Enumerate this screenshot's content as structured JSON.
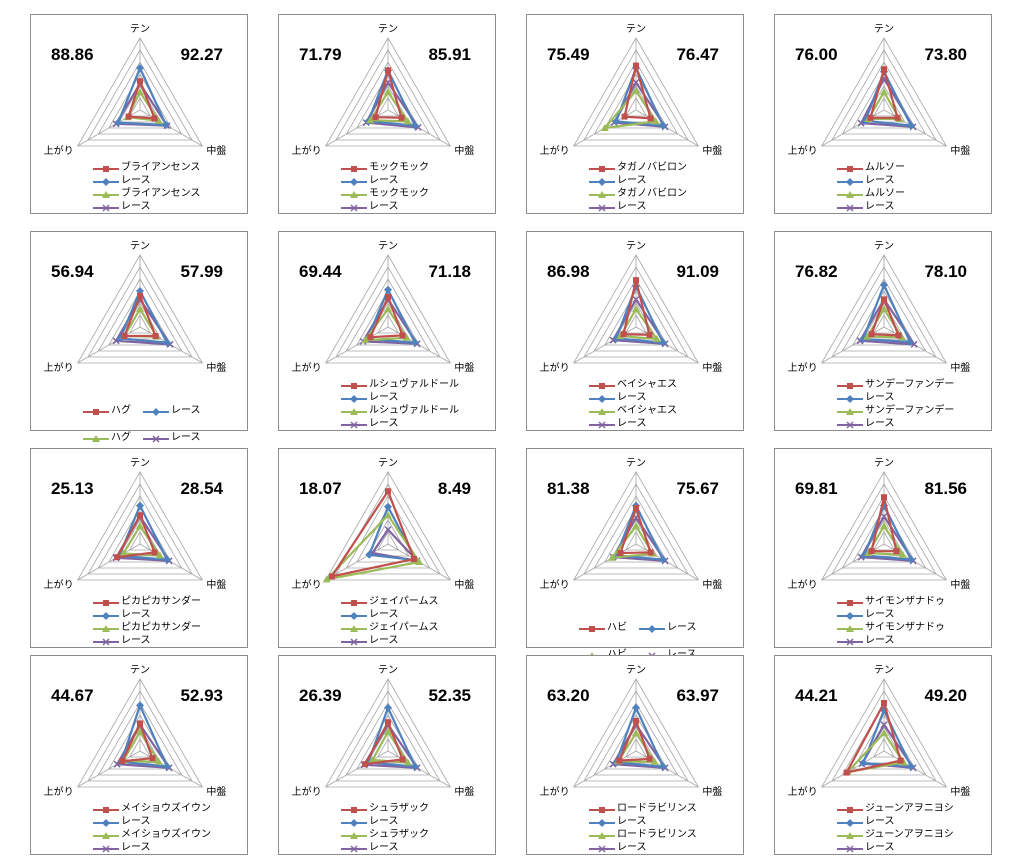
{
  "chart_data": {
    "type": "radar",
    "axes": [
      "テン",
      "中盤",
      "上がり"
    ],
    "series_colors": {
      "horse_early": "#C0504D",
      "race_early": "#4F81BD",
      "horse_late": "#9BBB59",
      "race_late": "#8064A2"
    },
    "grid_levels": 6,
    "rmax": 6,
    "panels": [
      {
        "left_score": "88.86",
        "right_score": "92.27",
        "horse": "ブライアンセンス",
        "race": "レース",
        "legend_layout": "list",
        "series": [
          {
            "name": "ブライアンセンス",
            "color": "#C0504D",
            "marker": "square",
            "values": [
              2.4,
              1.4,
              1.1
            ]
          },
          {
            "name": "レース",
            "color": "#4F81BD",
            "marker": "diamond",
            "values": [
              3.5,
              2.5,
              2.1
            ]
          },
          {
            "name": "ブライアンセンス",
            "color": "#9BBB59",
            "marker": "triangle",
            "values": [
              1.5,
              1.8,
              1.2
            ]
          },
          {
            "name": "レース",
            "color": "#8064A2",
            "marker": "x",
            "values": [
              2.2,
              2.6,
              2.3
            ]
          }
        ]
      },
      {
        "left_score": "71.79",
        "right_score": "85.91",
        "horse": "モックモック",
        "race": "レース",
        "legend_layout": "list",
        "series": [
          {
            "name": "モックモック",
            "color": "#C0504D",
            "marker": "square",
            "values": [
              3.3,
              1.3,
              1.2
            ]
          },
          {
            "name": "レース",
            "color": "#4F81BD",
            "marker": "diamond",
            "values": [
              3.3,
              2.6,
              1.9
            ]
          },
          {
            "name": "モックモック",
            "color": "#9BBB59",
            "marker": "triangle",
            "values": [
              1.5,
              1.9,
              1.7
            ]
          },
          {
            "name": "レース",
            "color": "#8064A2",
            "marker": "x",
            "values": [
              2.3,
              2.9,
              2.1
            ]
          }
        ]
      },
      {
        "left_score": "75.49",
        "right_score": "76.47",
        "horse": "タガノバビロン",
        "race": "レース",
        "legend_layout": "list",
        "series": [
          {
            "name": "タガノバビロン",
            "color": "#C0504D",
            "marker": "square",
            "values": [
              3.7,
              1.4,
              1.1
            ]
          },
          {
            "name": "レース",
            "color": "#4F81BD",
            "marker": "diamond",
            "values": [
              3.5,
              2.6,
              1.9
            ]
          },
          {
            "name": "タガノバビロン",
            "color": "#9BBB59",
            "marker": "triangle",
            "values": [
              1.6,
              1.9,
              3.0
            ]
          },
          {
            "name": "レース",
            "color": "#8064A2",
            "marker": "x",
            "values": [
              2.3,
              2.8,
              2.1
            ]
          }
        ]
      },
      {
        "left_score": "76.00",
        "right_score": "73.80",
        "horse": "ムルソー",
        "race": "レース",
        "legend_layout": "list",
        "series": [
          {
            "name": "ムルソー",
            "color": "#C0504D",
            "marker": "square",
            "values": [
              3.4,
              1.3,
              1.3
            ]
          },
          {
            "name": "レース",
            "color": "#4F81BD",
            "marker": "diamond",
            "values": [
              3.2,
              2.6,
              1.8
            ]
          },
          {
            "name": "ムルソー",
            "color": "#9BBB59",
            "marker": "triangle",
            "values": [
              1.5,
              1.5,
              1.5
            ]
          },
          {
            "name": "レース",
            "color": "#8064A2",
            "marker": "x",
            "values": [
              2.6,
              2.8,
              2.2
            ]
          }
        ]
      },
      {
        "left_score": "56.94",
        "right_score": "57.99",
        "horse": "ハグ",
        "race": "レース",
        "legend_layout": "grid",
        "series": [
          {
            "name": "ハグ",
            "color": "#C0504D",
            "marker": "square",
            "values": [
              2.6,
              1.5,
              1.5
            ]
          },
          {
            "name": "レース",
            "color": "#4F81BD",
            "marker": "diamond",
            "values": [
              3.0,
              2.6,
              1.9
            ]
          },
          {
            "name": "ハグ",
            "color": "#9BBB59",
            "marker": "triangle",
            "values": [
              1.5,
              1.6,
              1.5
            ]
          },
          {
            "name": "レース",
            "color": "#8064A2",
            "marker": "x",
            "values": [
              2.3,
              2.9,
              2.3
            ]
          }
        ]
      },
      {
        "left_score": "69.44",
        "right_score": "71.18",
        "horse": "ルシュヴァルドール",
        "race": "レース",
        "legend_layout": "list",
        "series": [
          {
            "name": "ルシュヴァルドール",
            "color": "#C0504D",
            "marker": "square",
            "values": [
              2.5,
              1.4,
              1.7
            ]
          },
          {
            "name": "レース",
            "color": "#4F81BD",
            "marker": "diamond",
            "values": [
              3.1,
              2.6,
              2.0
            ]
          },
          {
            "name": "ルシュヴァルドール",
            "color": "#9BBB59",
            "marker": "triangle",
            "values": [
              1.5,
              1.8,
              2.2
            ]
          },
          {
            "name": "レース",
            "color": "#8064A2",
            "marker": "x",
            "values": [
              2.3,
              2.8,
              2.4
            ]
          }
        ]
      },
      {
        "left_score": "86.98",
        "right_score": "91.09",
        "horse": "ベイシャエス",
        "race": "レース",
        "legend_layout": "list",
        "series": [
          {
            "name": "ベイシャエス",
            "color": "#C0504D",
            "marker": "square",
            "values": [
              3.9,
              1.3,
              1.2
            ]
          },
          {
            "name": "レース",
            "color": "#4F81BD",
            "marker": "diamond",
            "values": [
              3.4,
              2.6,
              1.9
            ]
          },
          {
            "name": "ベイシャエス",
            "color": "#9BBB59",
            "marker": "triangle",
            "values": [
              1.5,
              2.0,
              1.5
            ]
          },
          {
            "name": "レース",
            "color": "#8064A2",
            "marker": "x",
            "values": [
              2.3,
              2.8,
              2.2
            ]
          }
        ]
      },
      {
        "left_score": "76.82",
        "right_score": "78.10",
        "horse": "サンデーファンデー",
        "race": "レース",
        "legend_layout": "list",
        "series": [
          {
            "name": "サンデーファンデー",
            "color": "#C0504D",
            "marker": "square",
            "values": [
              2.3,
              1.4,
              1.2
            ]
          },
          {
            "name": "レース",
            "color": "#4F81BD",
            "marker": "diamond",
            "values": [
              3.5,
              2.5,
              2.0
            ]
          },
          {
            "name": "サンデーファンデー",
            "color": "#9BBB59",
            "marker": "triangle",
            "values": [
              1.5,
              1.7,
              1.6
            ]
          },
          {
            "name": "レース",
            "color": "#8064A2",
            "marker": "x",
            "values": [
              2.3,
              2.9,
              2.3
            ]
          }
        ]
      },
      {
        "left_score": "25.13",
        "right_score": "28.54",
        "horse": "ピカピカサンダー",
        "race": "レース",
        "legend_layout": "list",
        "series": [
          {
            "name": "ピカピカサンダー",
            "color": "#C0504D",
            "marker": "square",
            "values": [
              2.4,
              1.4,
              2.2
            ]
          },
          {
            "name": "レース",
            "color": "#4F81BD",
            "marker": "diamond",
            "values": [
              3.2,
              2.6,
              2.0
            ]
          },
          {
            "name": "ピカピカサンダー",
            "color": "#9BBB59",
            "marker": "triangle",
            "values": [
              1.5,
              1.9,
              1.6
            ]
          },
          {
            "name": "レース",
            "color": "#8064A2",
            "marker": "x",
            "values": [
              2.3,
              2.8,
              2.3
            ]
          }
        ]
      },
      {
        "left_score": "18.07",
        "right_score": "8.49",
        "horse": "ジェイパームス",
        "race": "レース",
        "legend_layout": "list",
        "series": [
          {
            "name": "ジェイパームス",
            "color": "#C0504D",
            "marker": "square",
            "values": [
              4.4,
              2.5,
              5.4
            ]
          },
          {
            "name": "レース",
            "color": "#4F81BD",
            "marker": "diamond",
            "values": [
              3.1,
              2.7,
              1.8
            ]
          },
          {
            "name": "ジェイパームス",
            "color": "#9BBB59",
            "marker": "triangle",
            "values": [
              2.4,
              3.0,
              5.9
            ]
          },
          {
            "name": "レース",
            "color": "#8064A2",
            "marker": "x",
            "values": [
              1.2,
              2.8,
              1.5
            ]
          }
        ]
      },
      {
        "left_score": "81.38",
        "right_score": "75.67",
        "horse": "ハビ",
        "race": "レース",
        "legend_layout": "grid",
        "series": [
          {
            "name": "ハビ",
            "color": "#C0504D",
            "marker": "square",
            "values": [
              3.0,
              1.4,
              1.5
            ]
          },
          {
            "name": "レース",
            "color": "#4F81BD",
            "marker": "diamond",
            "values": [
              3.2,
              2.6,
              1.9
            ]
          },
          {
            "name": "ハビ",
            "color": "#9BBB59",
            "marker": "triangle",
            "values": [
              1.5,
              1.6,
              2.3
            ]
          },
          {
            "name": "レース",
            "color": "#8064A2",
            "marker": "x",
            "values": [
              2.2,
              2.8,
              2.2
            ]
          }
        ]
      },
      {
        "left_score": "69.81",
        "right_score": "81.56",
        "horse": "サイモンザナドゥ",
        "race": "レース",
        "legend_layout": "list",
        "series": [
          {
            "name": "サイモンザナドゥ",
            "color": "#C0504D",
            "marker": "square",
            "values": [
              3.9,
              1.2,
              1.2
            ]
          },
          {
            "name": "レース",
            "color": "#4F81BD",
            "marker": "diamond",
            "values": [
              3.2,
              2.6,
              1.9
            ]
          },
          {
            "name": "サイモンザナドゥ",
            "color": "#9BBB59",
            "marker": "triangle",
            "values": [
              1.5,
              1.8,
              1.5
            ]
          },
          {
            "name": "レース",
            "color": "#8064A2",
            "marker": "x",
            "values": [
              2.3,
              2.8,
              2.2
            ]
          }
        ]
      },
      {
        "left_score": "44.67",
        "right_score": "52.93",
        "horse": "メイショウズイウン",
        "race": "レース",
        "legend_layout": "list",
        "series": [
          {
            "name": "メイショウズイウン",
            "color": "#C0504D",
            "marker": "square",
            "values": [
              2.3,
              1.2,
              1.7
            ]
          },
          {
            "name": "レース",
            "color": "#4F81BD",
            "marker": "diamond",
            "values": [
              3.8,
              2.6,
              1.8
            ]
          },
          {
            "name": "メイショウズイウン",
            "color": "#9BBB59",
            "marker": "triangle",
            "values": [
              1.6,
              1.8,
              1.6
            ]
          },
          {
            "name": "レース",
            "color": "#8064A2",
            "marker": "x",
            "values": [
              2.2,
              2.8,
              2.2
            ]
          }
        ]
      },
      {
        "left_score": "26.39",
        "right_score": "52.35",
        "horse": "シュラザック",
        "race": "レース",
        "legend_layout": "list",
        "series": [
          {
            "name": "シュラザック",
            "color": "#C0504D",
            "marker": "square",
            "values": [
              2.4,
              1.4,
              2.2
            ]
          },
          {
            "name": "レース",
            "color": "#4F81BD",
            "marker": "diamond",
            "values": [
              3.6,
              2.6,
              1.9
            ]
          },
          {
            "name": "シュラザック",
            "color": "#9BBB59",
            "marker": "triangle",
            "values": [
              1.6,
              1.9,
              1.5
            ]
          },
          {
            "name": "レース",
            "color": "#8064A2",
            "marker": "x",
            "values": [
              2.2,
              2.8,
              2.3
            ]
          }
        ]
      },
      {
        "left_score": "63.20",
        "right_score": "63.97",
        "horse": "ロードラビリンス",
        "race": "レース",
        "legend_layout": "list",
        "series": [
          {
            "name": "ロードラビリンス",
            "color": "#C0504D",
            "marker": "square",
            "values": [
              2.5,
              1.3,
              1.6
            ]
          },
          {
            "name": "レース",
            "color": "#4F81BD",
            "marker": "diamond",
            "values": [
              3.6,
              2.6,
              1.9
            ]
          },
          {
            "name": "ロードラビリンス",
            "color": "#9BBB59",
            "marker": "triangle",
            "values": [
              1.5,
              1.8,
              1.7
            ]
          },
          {
            "name": "レース",
            "color": "#8064A2",
            "marker": "x",
            "values": [
              2.2,
              2.8,
              2.2
            ]
          }
        ]
      },
      {
        "left_score": "44.21",
        "right_score": "49.20",
        "horse": "ジューンアヲニヨシ",
        "race": "レース",
        "legend_layout": "list",
        "series": [
          {
            "name": "ジューンアヲニヨシ",
            "color": "#C0504D",
            "marker": "square",
            "values": [
              4.0,
              1.6,
              3.6
            ]
          },
          {
            "name": "レース",
            "color": "#4F81BD",
            "marker": "diamond",
            "values": [
              3.4,
              2.6,
              2.0
            ]
          },
          {
            "name": "ジューンアヲニヨシ",
            "color": "#9BBB59",
            "marker": "triangle",
            "values": [
              1.5,
              1.9,
              3.5
            ]
          },
          {
            "name": "レース",
            "color": "#8064A2",
            "marker": "x",
            "values": [
              2.2,
              2.8,
              2.1
            ]
          }
        ]
      }
    ]
  }
}
